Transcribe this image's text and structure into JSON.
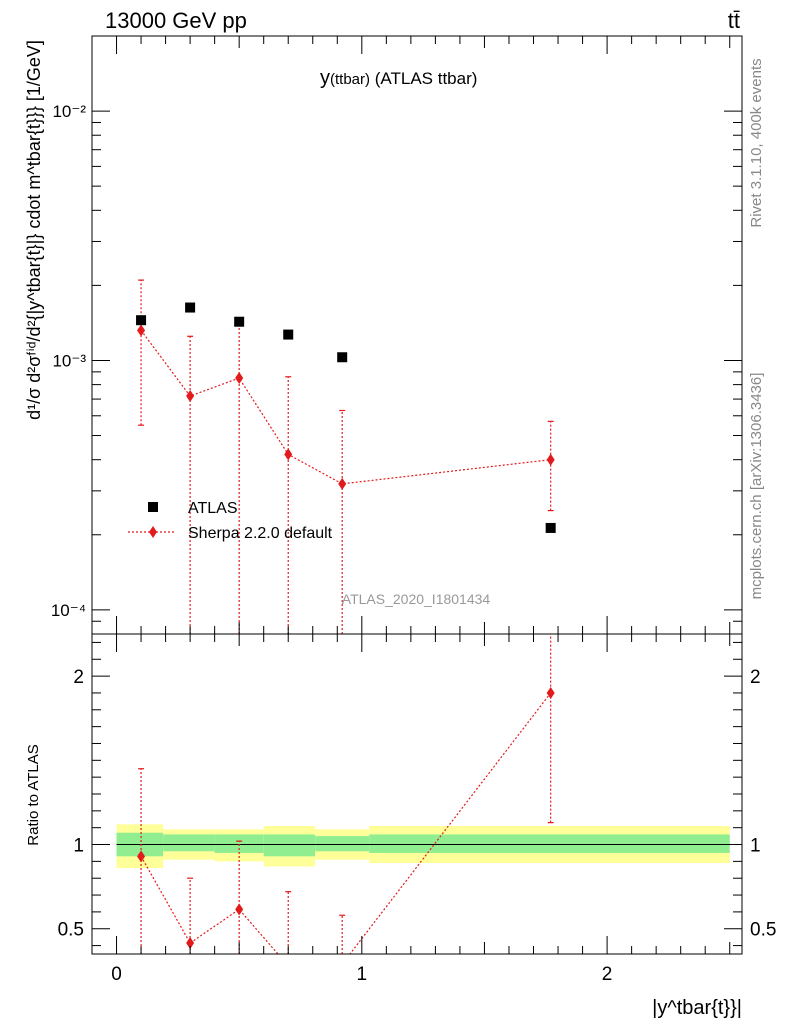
{
  "header": {
    "left": "13000 GeV pp",
    "right": "tt̄"
  },
  "side_texts": {
    "rivet": "Rivet 3.1.10,  400k events",
    "mcplots": "mcplots.cern.ch [arXiv:1306.3436]"
  },
  "chart_data": [
    {
      "type": "scatter",
      "title_main": "y",
      "title_sub": "(ttbar)",
      "title_rest": " (ATLAS ttbar)",
      "watermark": "ATLAS_2020_I1801434",
      "ylabel": "d¹/σ d²σᶠⁱᵈ/d²{|y^tbar{t}|} cdot m^tbar{t}}} [1/GeV]",
      "yscale": "log",
      "ylim": [
        8e-05,
        0.02
      ],
      "xlim": [
        -0.1,
        2.55
      ],
      "grid": false,
      "legend_position": "bottom-left",
      "series": [
        {
          "name": "ATLAS",
          "marker": "square",
          "color": "#000000",
          "x": [
            0.1,
            0.3,
            0.5,
            0.7,
            0.92,
            1.77
          ],
          "y": [
            0.00145,
            0.00163,
            0.00143,
            0.00127,
            0.00103,
            0.000213
          ]
        },
        {
          "name": "Sherpa 2.2.0 default",
          "marker": "diamond",
          "line": "dotted",
          "color": "#e31a1c",
          "x": [
            0.1,
            0.3,
            0.5,
            0.7,
            0.92,
            1.77
          ],
          "y": [
            0.00132,
            0.00072,
            0.00085,
            0.00042,
            0.00032,
            0.0004
          ],
          "y_low": [
            0.00055,
            1e-05,
            1e-05,
            1e-05,
            1e-05,
            0.00025
          ],
          "y_high": [
            0.0021,
            0.00125,
            0.00142,
            0.00086,
            0.00063,
            0.00057
          ]
        }
      ],
      "y_tick_labels": [
        "10⁻⁴",
        "10⁻³",
        "10⁻²"
      ],
      "y_ticks": [
        0.0001,
        0.001,
        0.01
      ]
    },
    {
      "type": "scatter",
      "ylabel": "Ratio to ATLAS",
      "xlabel": "|y^tbar{t}}|",
      "xlim": [
        -0.1,
        2.55
      ],
      "ylim": [
        0.35,
        2.25
      ],
      "x_ticks": [
        0,
        1,
        2
      ],
      "x_tick_labels": [
        "0",
        "1",
        "2"
      ],
      "y_ticks": [
        0.5,
        1,
        2
      ],
      "y_tick_labels": [
        "0.5",
        "1",
        "2"
      ],
      "reference_line": 1,
      "bins": [
        {
          "x0": 0.0,
          "x1": 0.19,
          "inner": [
            0.93,
            1.07
          ],
          "outer": [
            0.86,
            1.12
          ]
        },
        {
          "x0": 0.19,
          "x1": 0.4,
          "inner": [
            0.96,
            1.06
          ],
          "outer": [
            0.91,
            1.09
          ]
        },
        {
          "x0": 0.4,
          "x1": 0.6,
          "inner": [
            0.95,
            1.06
          ],
          "outer": [
            0.9,
            1.09
          ]
        },
        {
          "x0": 0.6,
          "x1": 0.81,
          "inner": [
            0.93,
            1.06
          ],
          "outer": [
            0.87,
            1.11
          ]
        },
        {
          "x0": 0.81,
          "x1": 1.03,
          "inner": [
            0.96,
            1.05
          ],
          "outer": [
            0.91,
            1.09
          ]
        },
        {
          "x0": 1.03,
          "x1": 2.5,
          "inner": [
            0.95,
            1.06
          ],
          "outer": [
            0.89,
            1.11
          ]
        }
      ],
      "band_colors": {
        "inner": "#90ee90",
        "outer": "#ffff99"
      },
      "series": [
        {
          "name": "Sherpa 2.2.0 default",
          "color": "#e31a1c",
          "x": [
            0.1,
            0.3,
            0.5,
            0.7,
            0.92,
            1.77
          ],
          "y": [
            0.93,
            0.415,
            0.615,
            0.28,
            0.29,
            1.9
          ],
          "y_low": [
            0.3,
            0.1,
            0.1,
            0.1,
            0.1,
            1.13
          ],
          "y_high": [
            1.45,
            0.8,
            1.02,
            0.72,
            0.58,
            2.3
          ]
        }
      ]
    }
  ]
}
